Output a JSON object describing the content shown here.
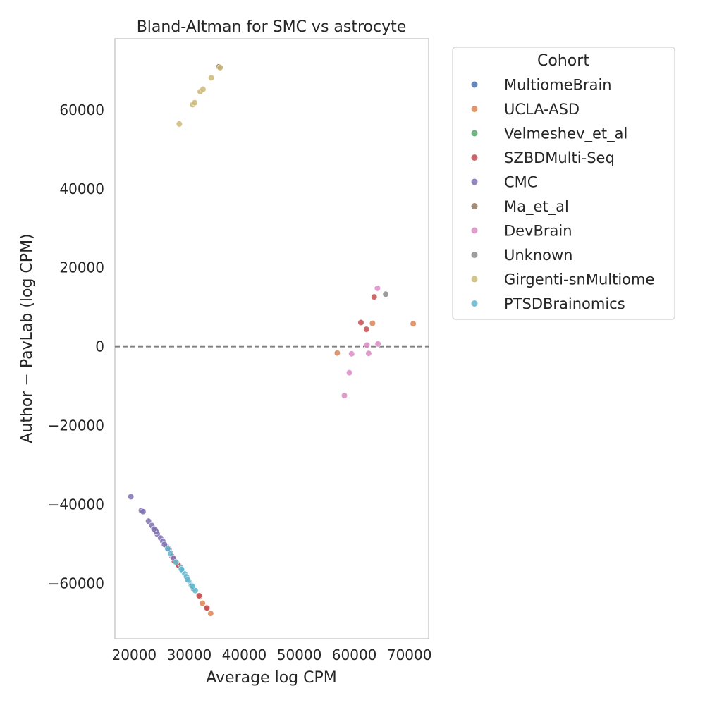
{
  "chart_data": {
    "type": "scatter",
    "title": "Bland-Altman for SMC vs astrocyte",
    "xlabel": "Average log CPM",
    "ylabel": "Author − PavLab (log CPM)",
    "xlim": [
      16500,
      73500
    ],
    "ylim": [
      -74000,
      78000
    ],
    "xticks": [
      20000,
      30000,
      40000,
      50000,
      60000,
      70000
    ],
    "yticks": [
      -60000,
      -40000,
      -20000,
      0,
      20000,
      40000,
      60000
    ],
    "xtick_labels": [
      "20000",
      "30000",
      "40000",
      "50000",
      "60000",
      "70000"
    ],
    "ytick_labels": [
      "−60000",
      "−40000",
      "−20000",
      "0",
      "20000",
      "40000",
      "60000"
    ],
    "grid": false,
    "reference_line_y": 0,
    "legend": {
      "title": "Cohort",
      "placement": "outside-right",
      "entries": [
        "MultiomeBrain",
        "UCLA-ASD",
        "Velmeshev_et_al",
        "SZBDMulti-Seq",
        "CMC",
        "Ma_et_al",
        "DevBrain",
        "Unknown",
        "Girgenti-snMultiome",
        "PTSDBrainomics"
      ]
    },
    "colors": {
      "MultiomeBrain": "#4c72b0",
      "UCLA-ASD": "#dd8452",
      "Velmeshev_et_al": "#55a868",
      "SZBDMulti-Seq": "#c44e52",
      "CMC": "#8172b3",
      "Ma_et_al": "#937860",
      "DevBrain": "#da8bc3",
      "Unknown": "#8c8c8c",
      "Girgenti-snMultiome": "#ccb974",
      "PTSDBrainomics": "#64b5cd"
    },
    "series": [
      {
        "name": "UCLA-ASD",
        "points": [
          [
            56900,
            -1600
          ],
          [
            63300,
            5900
          ],
          [
            70700,
            5800
          ],
          [
            26300,
            -51200
          ],
          [
            31900,
            -63300
          ],
          [
            32400,
            -65000
          ],
          [
            33300,
            -66200
          ],
          [
            33900,
            -67600
          ],
          [
            28200,
            -55600
          ]
        ]
      },
      {
        "name": "SZBDMulti-Seq",
        "points": [
          [
            61200,
            6100
          ],
          [
            62200,
            4400
          ],
          [
            63600,
            12600
          ],
          [
            27300,
            -54300
          ],
          [
            28000,
            -55300
          ],
          [
            31800,
            -63100
          ],
          [
            33200,
            -66200
          ],
          [
            26900,
            -53200
          ]
        ]
      },
      {
        "name": "CMC",
        "points": [
          [
            19400,
            -38000
          ],
          [
            21300,
            -41500
          ],
          [
            21600,
            -41800
          ],
          [
            22600,
            -44200
          ],
          [
            23200,
            -45300
          ],
          [
            23800,
            -46400
          ],
          [
            24200,
            -47500
          ],
          [
            24800,
            -48500
          ],
          [
            25200,
            -49300
          ],
          [
            25800,
            -50500
          ],
          [
            26300,
            -51400
          ],
          [
            24000,
            -46900
          ],
          [
            23600,
            -46200
          ],
          [
            25500,
            -50100
          ],
          [
            27100,
            -53600
          ]
        ]
      },
      {
        "name": "Ma_et_al",
        "points": [
          [
            35600,
            70800
          ],
          [
            35400,
            70900
          ]
        ]
      },
      {
        "name": "DevBrain",
        "points": [
          [
            64200,
            14800
          ],
          [
            64300,
            700
          ],
          [
            62300,
            400
          ],
          [
            62600,
            -1700
          ],
          [
            59500,
            -1800
          ],
          [
            59100,
            -6600
          ],
          [
            58200,
            -12400
          ]
        ]
      },
      {
        "name": "Unknown",
        "points": [
          [
            65700,
            13300
          ]
        ]
      },
      {
        "name": "Girgenti-snMultiome",
        "points": [
          [
            28200,
            56400
          ],
          [
            30600,
            61300
          ],
          [
            31000,
            61800
          ],
          [
            32000,
            64600
          ],
          [
            32500,
            65200
          ],
          [
            34000,
            68100
          ],
          [
            35600,
            70700
          ]
        ]
      },
      {
        "name": "PTSDBrainomics",
        "points": [
          [
            26600,
            -52400
          ],
          [
            27600,
            -54600
          ],
          [
            28500,
            -56000
          ],
          [
            28800,
            -56800
          ],
          [
            29200,
            -57600
          ],
          [
            29500,
            -58300
          ],
          [
            29900,
            -59300
          ],
          [
            30400,
            -60500
          ],
          [
            30800,
            -61400
          ],
          [
            31100,
            -61800
          ],
          [
            26100,
            -51200
          ],
          [
            28600,
            -56400
          ],
          [
            29700,
            -59000
          ],
          [
            30600,
            -60700
          ]
        ]
      }
    ]
  }
}
